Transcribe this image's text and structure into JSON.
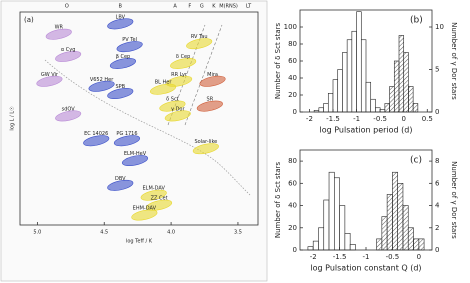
{
  "chart_data": [
    {
      "type": "hr",
      "panel": "(a)",
      "x_label": "log Teff / K",
      "y_label": "log L / L☉",
      "xlim": [
        5.13,
        3.35
      ],
      "ylim": [
        -4.5,
        7
      ],
      "xticks": [
        {
          "value": 5,
          "label": "5.0"
        },
        4.5,
        {
          "value": 4,
          "label": "4.0"
        },
        3.5
      ],
      "spectral_types": [
        {
          "label": "O",
          "value": 4.78
        },
        {
          "label": "B",
          "value": 4.38
        },
        {
          "label": "A",
          "value": 3.97
        },
        {
          "label": "F",
          "value": 3.86
        },
        {
          "label": "G",
          "value": 3.77
        },
        {
          "label": "K",
          "value": 3.68
        },
        {
          "label": "M(RNS)",
          "value": 3.57
        },
        {
          "label": "LT",
          "value": 3.42
        }
      ],
      "regions": [
        {
          "label": "LBV",
          "x": 4.38,
          "y": 6.36,
          "color": "#3c50c8"
        },
        {
          "label": "WR",
          "x": 4.84,
          "y": 5.8,
          "color": "#b98ad6"
        },
        {
          "label": "PV Tel",
          "x": 4.31,
          "y": 5.13,
          "color": "#3c50c8"
        },
        {
          "label": "α Cyg",
          "x": 4.77,
          "y": 4.6,
          "color": "#b98ad6"
        },
        {
          "label": "β Cep",
          "x": 4.36,
          "y": 4.22,
          "color": "#3c50c8"
        },
        {
          "label": "V652 Her",
          "x": 4.52,
          "y": 2.99,
          "color": "#3c50c8"
        },
        {
          "label": "SPB",
          "x": 4.38,
          "y": 2.6,
          "color": "#3c50c8"
        },
        {
          "label": "δ Cep",
          "x": 3.91,
          "y": 4.22,
          "color": "#e8d830"
        },
        {
          "label": "RV Tau",
          "x": 3.79,
          "y": 5.29,
          "color": "#e8d830"
        },
        {
          "label": "RR Lyr",
          "x": 3.94,
          "y": 3.26,
          "color": "#e8d830"
        },
        {
          "label": "BL Her",
          "x": 4.06,
          "y": 2.83,
          "color": "#e8d830"
        },
        {
          "label": "δ Sct",
          "x": 3.99,
          "y": 1.92,
          "color": "#e8d830"
        },
        {
          "label": "γ Dor",
          "x": 3.95,
          "y": 1.39,
          "color": "#e8d830"
        },
        {
          "label": "Mira",
          "x": 3.69,
          "y": 3.26,
          "color": "#d0603c"
        },
        {
          "label": "SR",
          "x": 3.71,
          "y": 1.92,
          "color": "#d0603c"
        },
        {
          "label": "Solar-like",
          "x": 3.74,
          "y": -0.38,
          "color": "#e8d830"
        },
        {
          "label": "GW Vir",
          "x": 4.91,
          "y": 3.26,
          "color": "#b98ad6"
        },
        {
          "label": "sdOV",
          "x": 4.77,
          "y": 1.39,
          "color": "#b98ad6"
        },
        {
          "label": "EC 14026",
          "x": 4.56,
          "y": 0.05,
          "color": "#3c50c8"
        },
        {
          "label": "PG 1716",
          "x": 4.33,
          "y": 0.05,
          "color": "#3c50c8"
        },
        {
          "label": "ELM-HeV",
          "x": 4.27,
          "y": -1.02,
          "color": "#3c50c8"
        },
        {
          "label": "DBV",
          "x": 4.38,
          "y": -2.36,
          "color": "#3c50c8"
        },
        {
          "label": "ELM-DAV",
          "x": 4.13,
          "y": -2.89,
          "color": "#e8d830"
        },
        {
          "label": "ZZ Cet",
          "x": 4.09,
          "y": -3.43,
          "color": "#e8d830"
        },
        {
          "label": "EHM-DAV",
          "x": 4.2,
          "y": -3.96,
          "color": "#e8d830"
        }
      ]
    },
    {
      "type": "histogram",
      "panel": "(b)",
      "x_label": "log Pulsation period (d)",
      "y_label": "Number of δ Sct stars",
      "y2_label": "Number of γ Dor stars",
      "xlim": [
        -2.2,
        0.6
      ],
      "xticks": [
        -2,
        -1.5,
        -1,
        -0.5,
        0,
        0.5
      ],
      "ylim": [
        0,
        120
      ],
      "yticks": [
        0,
        20,
        40,
        60,
        80,
        100
      ],
      "y2lim": [
        0,
        12
      ],
      "y2ticks": [
        0,
        5,
        10
      ],
      "series": [
        {
          "name": "δ Sct",
          "fill": "open",
          "bins": [
            -1.9,
            -1.8,
            -1.7,
            -1.6,
            -1.5,
            -1.4,
            -1.3,
            -1.2,
            -1.1,
            -1.0,
            -0.9,
            -0.8,
            -0.7,
            -0.6,
            -0.5,
            -0.4
          ],
          "values": [
            2,
            5,
            10,
            22,
            38,
            50,
            70,
            85,
            95,
            118,
            85,
            35,
            15,
            5,
            3
          ]
        },
        {
          "name": "γ Dor",
          "fill": "hatched",
          "axis": "y2",
          "bins": [
            -0.4,
            -0.3,
            -0.2,
            -0.1,
            0,
            0.1,
            0.2,
            0.3
          ],
          "values": [
            1,
            3,
            6,
            9,
            7,
            3,
            1
          ]
        }
      ]
    },
    {
      "type": "histogram",
      "panel": "(c)",
      "x_label": "log Pulsation constant Q (d)",
      "y_label": "Number of δ Sct stars",
      "y2_label": "Number of γ Dor stars",
      "xlim": [
        -2.25,
        0.25
      ],
      "xticks": [
        -2,
        -1.5,
        -1,
        -0.5,
        0
      ],
      "ylim": [
        0,
        90
      ],
      "yticks": [
        0,
        20,
        40,
        60,
        80
      ],
      "y2lim": [
        0,
        9
      ],
      "y2ticks": [
        0,
        2,
        4,
        6,
        8
      ],
      "series": [
        {
          "name": "δ Sct",
          "fill": "open",
          "bins": [
            -2.1,
            -2.0,
            -1.9,
            -1.8,
            -1.7,
            -1.6,
            -1.5,
            -1.4,
            -1.3,
            -1.2
          ],
          "values": [
            3,
            8,
            20,
            45,
            70,
            65,
            40,
            15,
            5
          ]
        },
        {
          "name": "γ Dor",
          "fill": "hatched",
          "axis": "y2",
          "bins": [
            -0.8,
            -0.7,
            -0.6,
            -0.5,
            -0.4,
            -0.3,
            -0.2,
            -0.1,
            0,
            0.1
          ],
          "values": [
            1,
            3,
            5,
            7,
            6,
            4,
            2,
            1,
            1
          ]
        }
      ]
    }
  ]
}
